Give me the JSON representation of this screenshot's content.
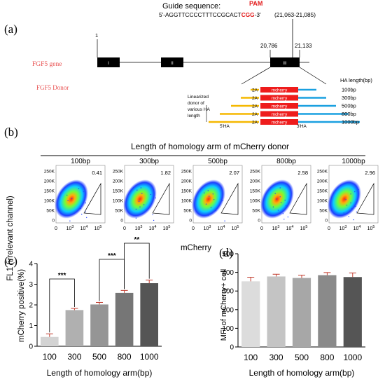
{
  "panel_a": {
    "label": "(a)",
    "guide_title": "Guide sequence:",
    "pam_label": "PAM",
    "guide_seq_prefix": "5'-AGGTTCCCCTTTCCGCACT",
    "guide_seq_pam": "CGG",
    "guide_seq_suffix": "-3'",
    "guide_coords": "(21,063-21,085)",
    "pos_start": "1",
    "pos_left": "20,786",
    "pos_right": "21,133",
    "gene_label": "FGF5 gene",
    "donor_label": "FGF5 Donor",
    "exons": [
      "I",
      "II",
      "III"
    ],
    "donor_desc": [
      "Linearized",
      "donor of",
      "various HA",
      "length"
    ],
    "cassette_2a": "2A",
    "cassette_name": "mcherry",
    "ha_header": "HA length(bp)",
    "ha_lengths": [
      "100bp",
      "300bp",
      "500bp",
      "800bp",
      "1000bp"
    ],
    "ha_5": "5'HA",
    "ha_3": "3'HA"
  },
  "panel_b": {
    "label": "(b)",
    "title": "Length of homology arm of mCherry donor",
    "ylabel": "FL1 (irrelevant channel)",
    "xlabel": "mCherry",
    "plots": [
      {
        "name": "100bp",
        "value": "0.41"
      },
      {
        "name": "300bp",
        "value": "1.82"
      },
      {
        "name": "500bp",
        "value": "2.07"
      },
      {
        "name": "800bp",
        "value": "2.58"
      },
      {
        "name": "1000bp",
        "value": "2.96"
      }
    ],
    "yticks": [
      "250K",
      "200K",
      "150K",
      "100K",
      "50K",
      "0"
    ],
    "xticks": [
      "0",
      "10",
      "3",
      "10",
      "4",
      "10",
      "5"
    ]
  },
  "chart_data": [
    {
      "type": "bar",
      "panel": "(c)",
      "categories": [
        "100",
        "300",
        "500",
        "800",
        "1000"
      ],
      "values": [
        0.45,
        1.75,
        2.02,
        2.58,
        3.05
      ],
      "errors": [
        0.15,
        0.08,
        0.1,
        0.12,
        0.15
      ],
      "ylabel": "mCherry positive(%)",
      "xlabel": "Length of homology arm(bp)",
      "ylim": [
        0,
        4
      ],
      "yticks": [
        "0",
        "1",
        "2",
        "3",
        "4"
      ],
      "significance": [
        {
          "from": "100",
          "to": "300",
          "label": "***"
        },
        {
          "from": "500",
          "to": "800",
          "label": "***"
        },
        {
          "from": "800",
          "to": "1000",
          "label": "**"
        }
      ],
      "colors": [
        "#d3d3d3",
        "#b0b0b0",
        "#959595",
        "#767676",
        "#555555"
      ]
    },
    {
      "type": "bar",
      "panel": "(d)",
      "categories": [
        "100",
        "300",
        "500",
        "800",
        "1000"
      ],
      "values": [
        352,
        378,
        370,
        385,
        375
      ],
      "errors": [
        22,
        12,
        15,
        14,
        22
      ],
      "ylabel": "MFI of mCherry+ cell",
      "xlabel": "Length of homology arm(bp)",
      "ylim": [
        0,
        500
      ],
      "yticks": [
        "0",
        "100",
        "200",
        "300",
        "400",
        "500"
      ],
      "colors": [
        "#dcdcdc",
        "#c4c4c4",
        "#a7a7a7",
        "#8a8a8a",
        "#555555"
      ]
    }
  ]
}
